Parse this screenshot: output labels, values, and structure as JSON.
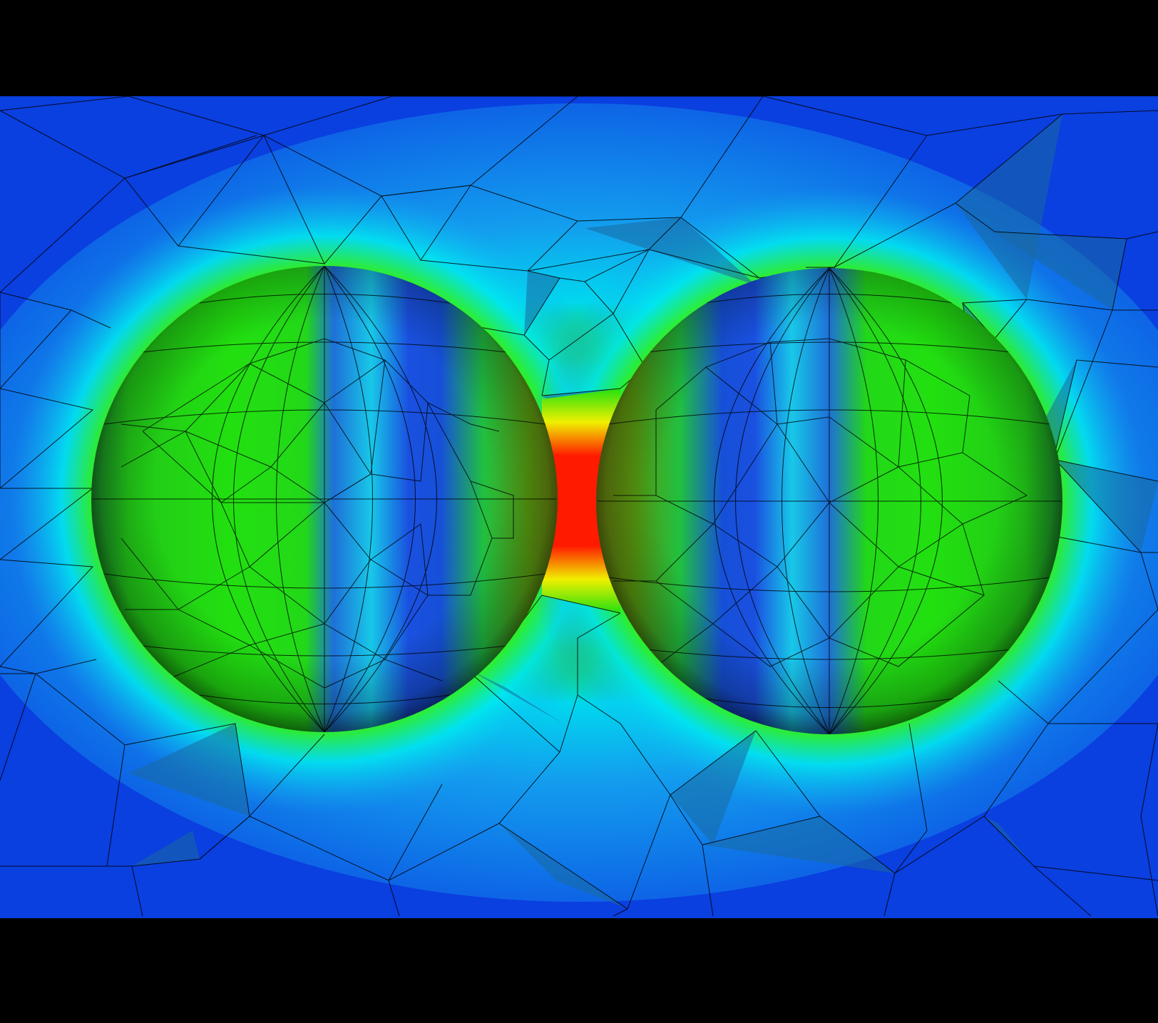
{
  "scene": {
    "description_type": "finite-element-field-render",
    "colors": {
      "background": "#000000",
      "low": "#0a3fe0",
      "mid_low": "#14a8f0",
      "mid": "#00e8f0",
      "mid_high": "#22e010",
      "high": "#f0f000",
      "peak": "#ff1a00",
      "mesh_line": "#000000"
    },
    "objects": [
      {
        "name": "left-sphere"
      },
      {
        "name": "right-sphere"
      },
      {
        "name": "contact-gap"
      }
    ]
  }
}
